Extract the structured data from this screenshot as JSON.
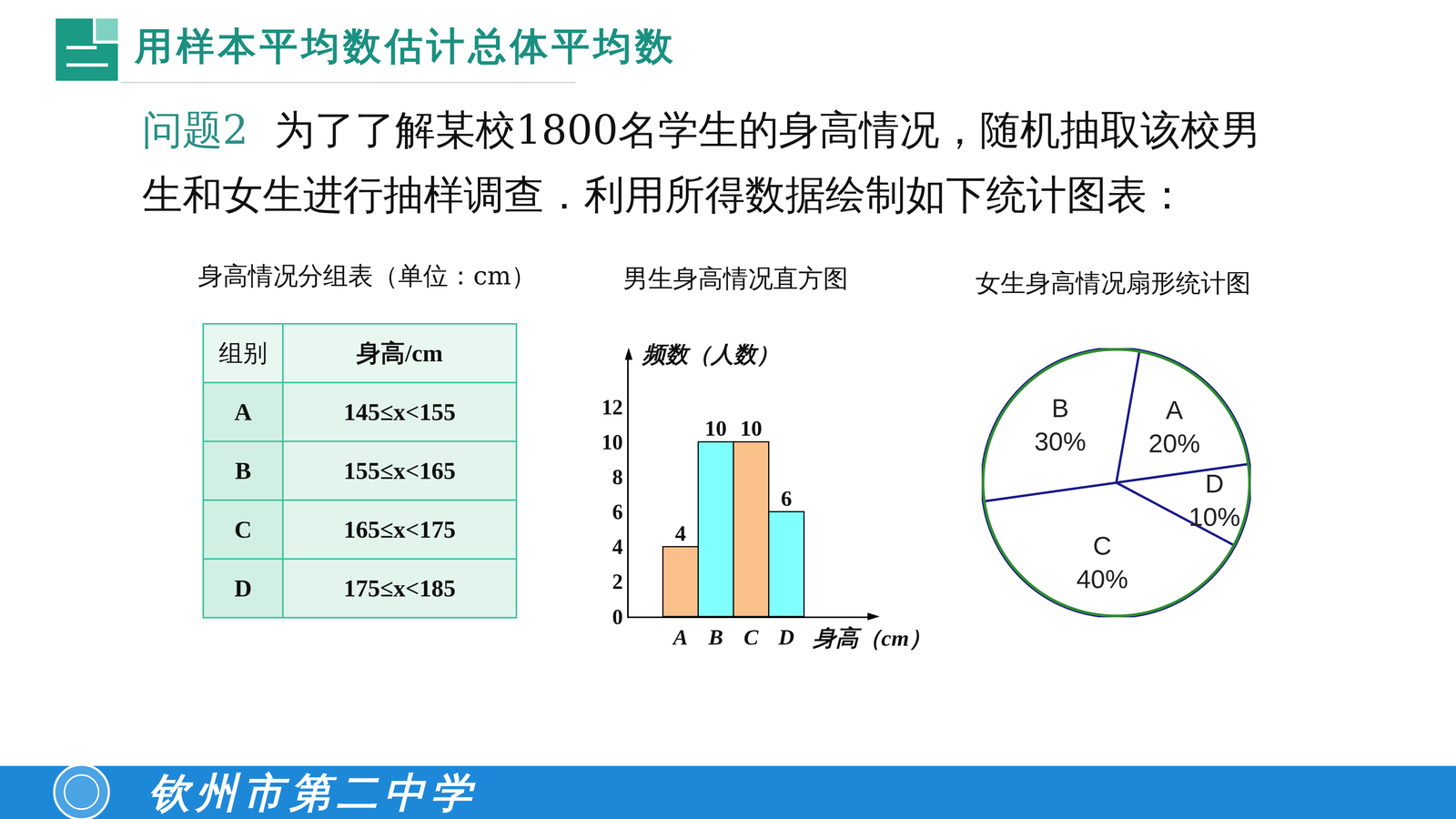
{
  "header": "用样本平均数估计总体平均数",
  "problem": {
    "label": "问题2",
    "lines": [
      "为了了解某校1800名学生的身高情况，随机抽取该校男",
      "生和女生进行抽样调查．利用所得数据绘制如下统计图表："
    ]
  },
  "table": {
    "title": "身高情况分组表（单位：cm）",
    "header": [
      "组别",
      "身高/cm"
    ],
    "rows": [
      [
        "A",
        "145≤x<155"
      ],
      [
        "B",
        "155≤x<165"
      ],
      [
        "C",
        "165≤x<175"
      ],
      [
        "D",
        "175≤x<185"
      ]
    ]
  },
  "chart_data": [
    {
      "type": "bar",
      "title": "男生身高情况直方图",
      "x_label": "身高（cm）",
      "y_label": "频数（人数）",
      "categories": [
        "A",
        "B",
        "C",
        "D"
      ],
      "values": [
        4,
        10,
        10,
        6
      ],
      "colors": [
        "#f9c08a",
        "#80ffff",
        "#f9c08a",
        "#80ffff"
      ],
      "ylim": [
        0,
        15
      ],
      "yticks": [
        0,
        2,
        4,
        6,
        8,
        10,
        12
      ],
      "grid": false,
      "data_labels": true
    },
    {
      "type": "pie",
      "title": "女生身高情况扇形统计图",
      "categories": [
        "A",
        "D",
        "C",
        "B"
      ],
      "values": [
        20,
        10,
        40,
        30
      ],
      "value_labels": [
        "20%",
        "10%",
        "40%",
        "30%"
      ],
      "color": "#ffffff"
    }
  ],
  "footer": "钦州市第二中学"
}
